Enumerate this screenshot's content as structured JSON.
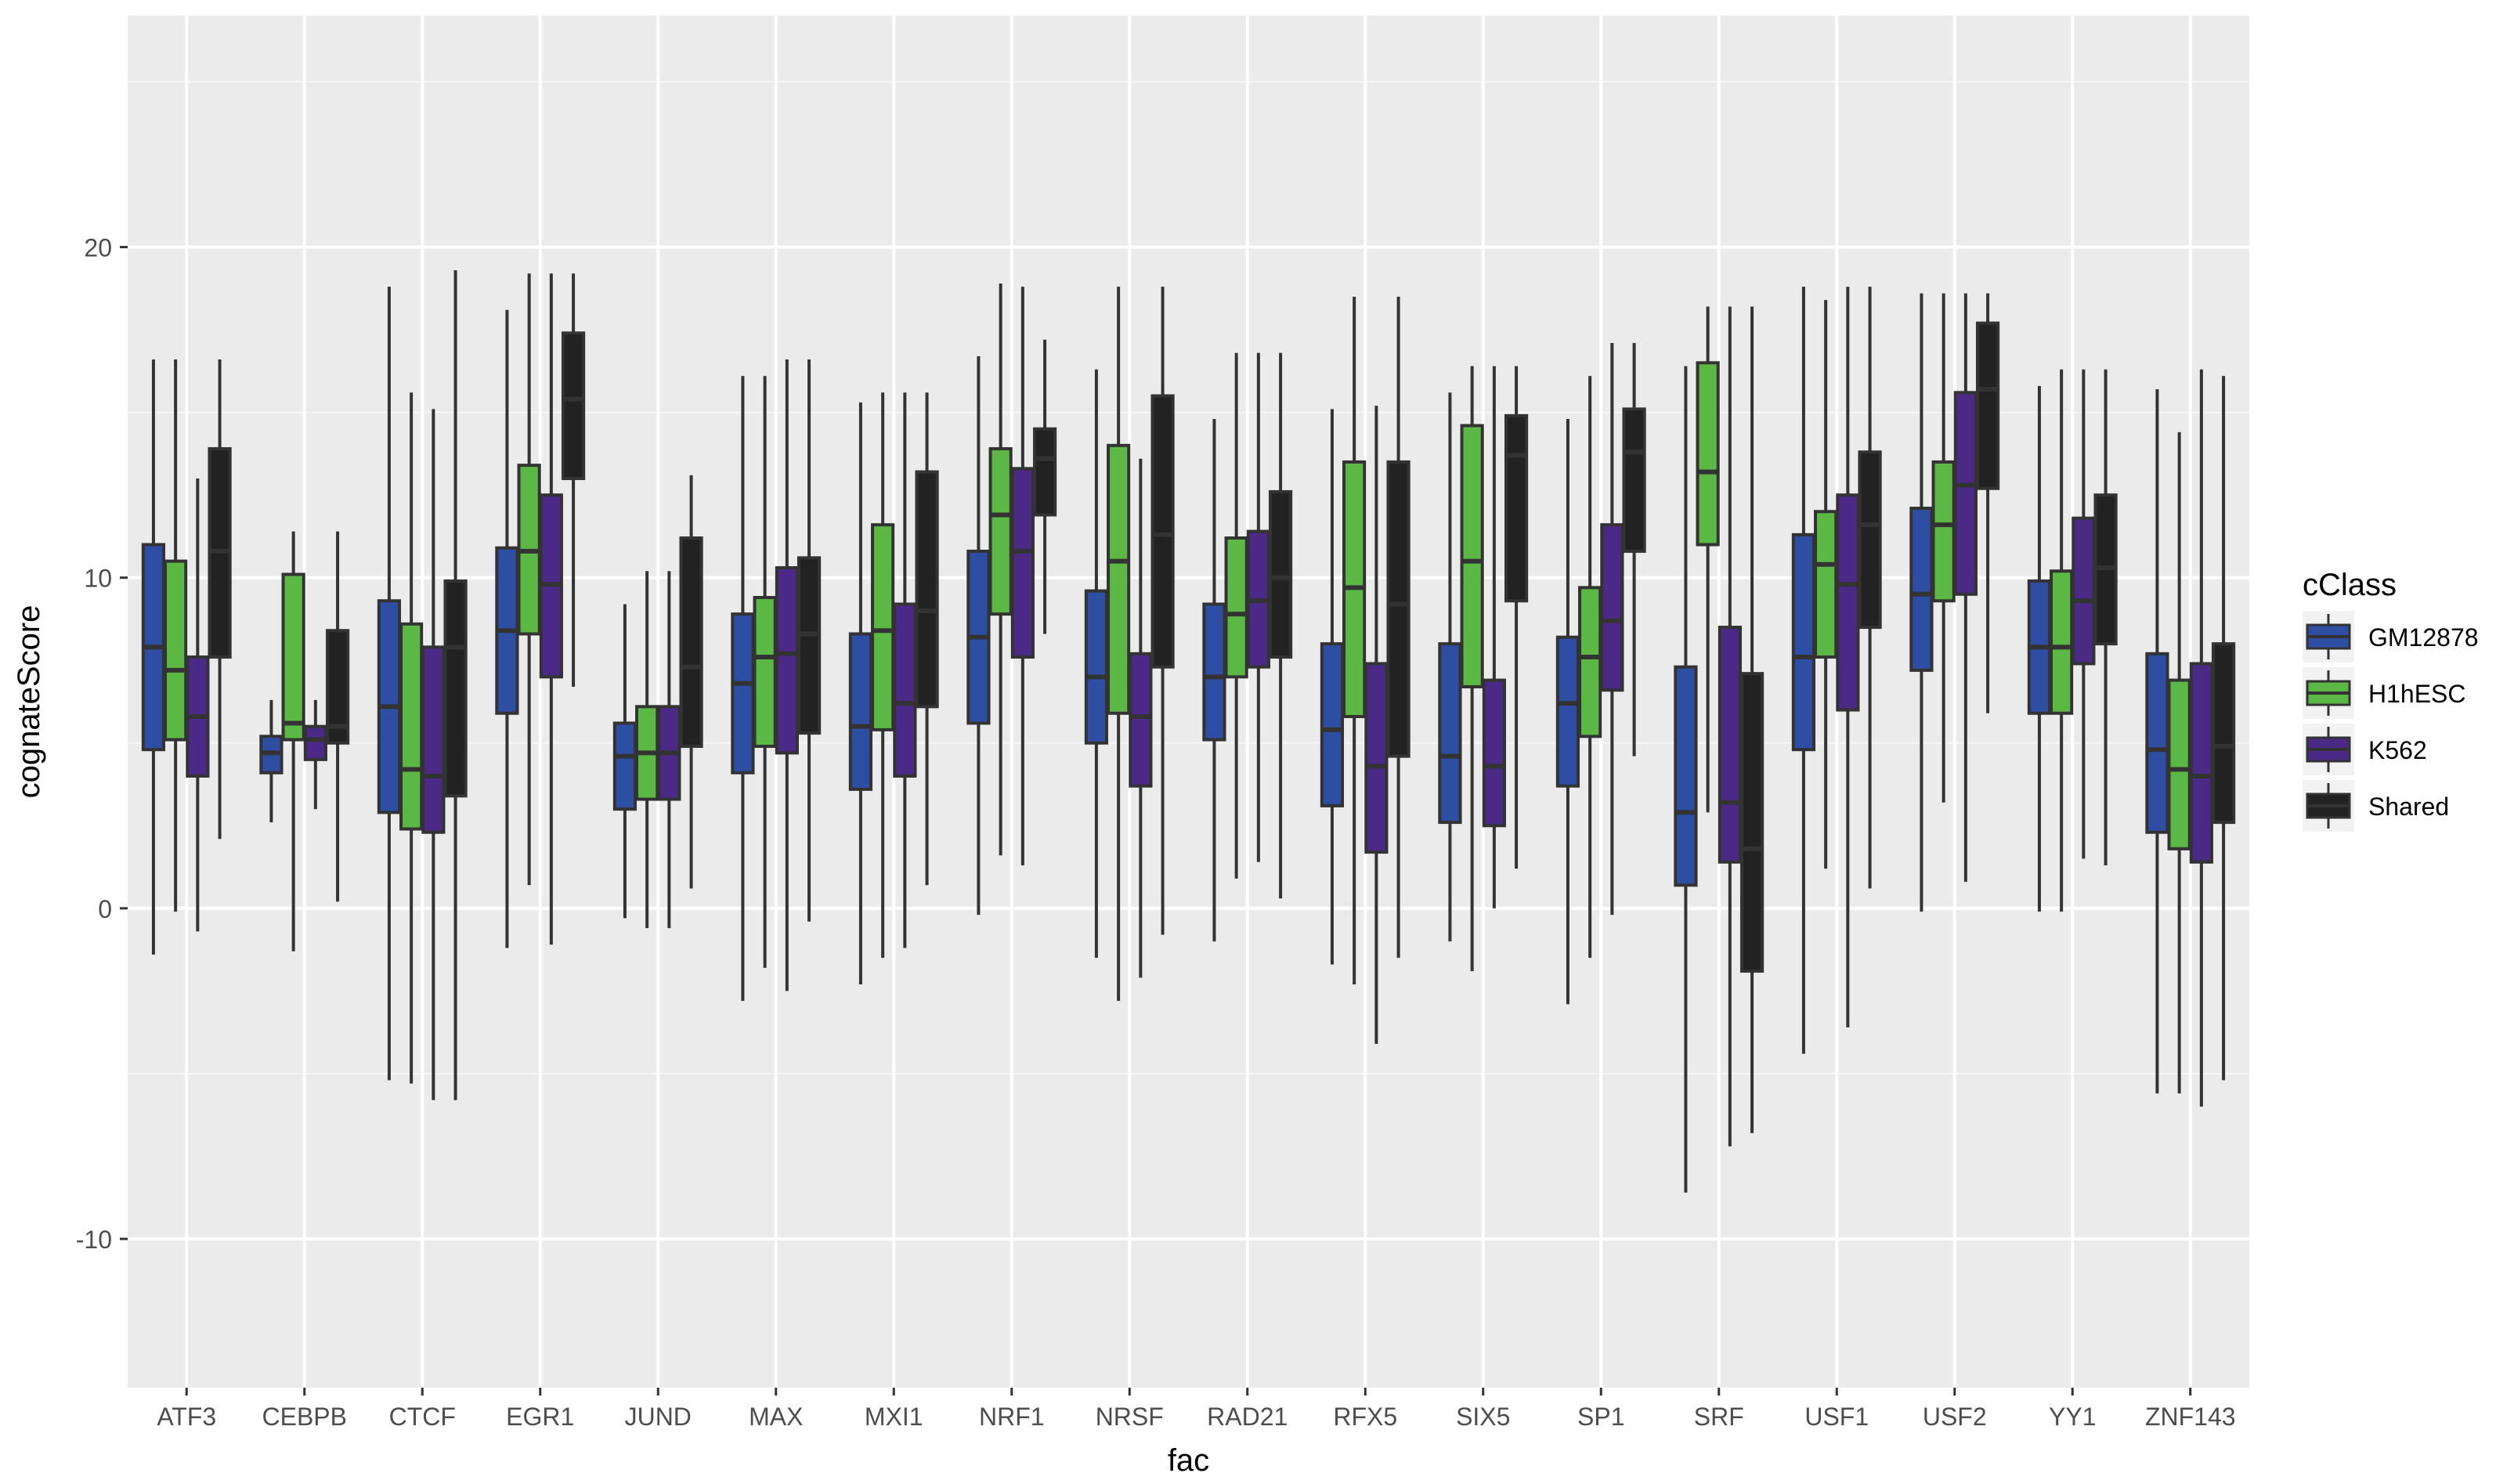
{
  "chart_data": {
    "type": "boxplot",
    "xlabel": "fac",
    "ylabel": "cognateScore",
    "ylim": [
      -14.5,
      27
    ],
    "yticks": [
      -10,
      0,
      10,
      20
    ],
    "grid": true,
    "legend": {
      "title": "cClass",
      "position": "right"
    },
    "categories": [
      "ATF3",
      "CEBPB",
      "CTCF",
      "EGR1",
      "JUND",
      "MAX",
      "MXI1",
      "NRF1",
      "NRSF",
      "RAD21",
      "RFX5",
      "SIX5",
      "SP1",
      "SRF",
      "USF1",
      "USF2",
      "YY1",
      "ZNF143"
    ],
    "series": [
      {
        "name": "GM12878",
        "color": "#2d4ea3",
        "boxes": [
          {
            "min": -1.4,
            "q1": 4.8,
            "median": 7.9,
            "q3": 11.0,
            "max": 16.6
          },
          {
            "min": 2.6,
            "q1": 4.1,
            "median": 4.7,
            "q3": 5.2,
            "max": 6.3
          },
          {
            "min": -5.2,
            "q1": 2.9,
            "median": 6.1,
            "q3": 9.3,
            "max": 18.8
          },
          {
            "min": -1.2,
            "q1": 5.9,
            "median": 8.4,
            "q3": 10.9,
            "max": 18.1
          },
          {
            "min": -0.3,
            "q1": 3.0,
            "median": 4.6,
            "q3": 5.6,
            "max": 9.2
          },
          {
            "min": -2.8,
            "q1": 4.1,
            "median": 6.8,
            "q3": 8.9,
            "max": 16.1
          },
          {
            "min": -2.3,
            "q1": 3.6,
            "median": 5.5,
            "q3": 8.3,
            "max": 15.3
          },
          {
            "min": -0.2,
            "q1": 5.6,
            "median": 8.2,
            "q3": 10.8,
            "max": 16.7
          },
          {
            "min": -1.5,
            "q1": 5.0,
            "median": 7.0,
            "q3": 9.6,
            "max": 16.3
          },
          {
            "min": -1.0,
            "q1": 5.1,
            "median": 7.0,
            "q3": 9.2,
            "max": 14.8
          },
          {
            "min": -1.7,
            "q1": 3.1,
            "median": 5.4,
            "q3": 8.0,
            "max": 15.1
          },
          {
            "min": -1.0,
            "q1": 2.6,
            "median": 4.6,
            "q3": 8.0,
            "max": 15.6
          },
          {
            "min": -2.9,
            "q1": 3.7,
            "median": 6.2,
            "q3": 8.2,
            "max": 14.8
          },
          {
            "min": -8.6,
            "q1": 0.7,
            "median": 2.9,
            "q3": 7.3,
            "max": 16.4
          },
          {
            "min": -4.4,
            "q1": 4.8,
            "median": 7.6,
            "q3": 11.3,
            "max": 18.8
          },
          {
            "min": -0.1,
            "q1": 7.2,
            "median": 9.5,
            "q3": 12.1,
            "max": 18.6
          },
          {
            "min": -0.1,
            "q1": 5.9,
            "median": 7.9,
            "q3": 9.9,
            "max": 15.8
          },
          {
            "min": -5.6,
            "q1": 2.3,
            "median": 4.8,
            "q3": 7.7,
            "max": 15.7
          }
        ]
      },
      {
        "name": "H1hESC",
        "color": "#5cb845",
        "boxes": [
          {
            "min": -0.1,
            "q1": 5.1,
            "median": 7.2,
            "q3": 10.5,
            "max": 16.6
          },
          {
            "min": -1.3,
            "q1": 5.1,
            "median": 5.6,
            "q3": 10.1,
            "max": 11.4
          },
          {
            "min": -5.3,
            "q1": 2.4,
            "median": 4.2,
            "q3": 8.6,
            "max": 15.6
          },
          {
            "min": 0.7,
            "q1": 8.3,
            "median": 10.8,
            "q3": 13.4,
            "max": 19.2
          },
          {
            "min": -0.6,
            "q1": 3.3,
            "median": 4.7,
            "q3": 6.1,
            "max": 10.2
          },
          {
            "min": -1.8,
            "q1": 4.9,
            "median": 7.6,
            "q3": 9.4,
            "max": 16.1
          },
          {
            "min": -1.5,
            "q1": 5.4,
            "median": 8.4,
            "q3": 11.6,
            "max": 15.6
          },
          {
            "min": 1.6,
            "q1": 8.9,
            "median": 11.9,
            "q3": 13.9,
            "max": 18.9
          },
          {
            "min": -2.8,
            "q1": 5.9,
            "median": 10.5,
            "q3": 14.0,
            "max": 18.8
          },
          {
            "min": 0.9,
            "q1": 7.0,
            "median": 8.9,
            "q3": 11.2,
            "max": 16.8
          },
          {
            "min": -2.3,
            "q1": 5.8,
            "median": 9.7,
            "q3": 13.5,
            "max": 18.5
          },
          {
            "min": -1.9,
            "q1": 6.7,
            "median": 10.5,
            "q3": 14.6,
            "max": 16.4
          },
          {
            "min": -1.5,
            "q1": 5.2,
            "median": 7.6,
            "q3": 9.7,
            "max": 16.1
          },
          {
            "min": 2.9,
            "q1": 11.0,
            "median": 13.2,
            "q3": 16.5,
            "max": 18.2
          },
          {
            "min": 1.2,
            "q1": 7.6,
            "median": 10.4,
            "q3": 12.0,
            "max": 18.4
          },
          {
            "min": 3.2,
            "q1": 9.3,
            "median": 11.6,
            "q3": 13.5,
            "max": 18.6
          },
          {
            "min": -0.1,
            "q1": 5.9,
            "median": 7.9,
            "q3": 10.2,
            "max": 16.3
          },
          {
            "min": -5.6,
            "q1": 1.8,
            "median": 4.2,
            "q3": 6.9,
            "max": 14.4
          }
        ]
      },
      {
        "name": "K562",
        "color": "#4a2a86",
        "boxes": [
          {
            "min": -0.7,
            "q1": 4.0,
            "median": 5.8,
            "q3": 7.6,
            "max": 13.0
          },
          {
            "min": 3.0,
            "q1": 4.5,
            "median": 5.1,
            "q3": 5.5,
            "max": 6.3
          },
          {
            "min": -5.8,
            "q1": 2.3,
            "median": 4.0,
            "q3": 7.9,
            "max": 15.1
          },
          {
            "min": -1.1,
            "q1": 7.0,
            "median": 9.8,
            "q3": 12.5,
            "max": 19.2
          },
          {
            "min": -0.6,
            "q1": 3.3,
            "median": 4.7,
            "q3": 6.1,
            "max": 10.2
          },
          {
            "min": -2.5,
            "q1": 4.7,
            "median": 7.7,
            "q3": 10.3,
            "max": 16.6
          },
          {
            "min": -1.2,
            "q1": 4.0,
            "median": 6.2,
            "q3": 9.2,
            "max": 15.6
          },
          {
            "min": 1.3,
            "q1": 7.6,
            "median": 10.8,
            "q3": 13.3,
            "max": 18.8
          },
          {
            "min": -2.1,
            "q1": 3.7,
            "median": 5.8,
            "q3": 7.7,
            "max": 13.6
          },
          {
            "min": 1.4,
            "q1": 7.3,
            "median": 9.3,
            "q3": 11.4,
            "max": 16.8
          },
          {
            "min": -4.1,
            "q1": 1.7,
            "median": 4.3,
            "q3": 7.4,
            "max": 15.2
          },
          {
            "min": 0.0,
            "q1": 2.5,
            "median": 4.3,
            "q3": 6.9,
            "max": 16.4
          },
          {
            "min": -0.2,
            "q1": 6.6,
            "median": 8.7,
            "q3": 11.6,
            "max": 17.1
          },
          {
            "min": -7.2,
            "q1": 1.4,
            "median": 3.2,
            "q3": 8.5,
            "max": 18.2
          },
          {
            "min": -3.6,
            "q1": 6.0,
            "median": 9.8,
            "q3": 12.5,
            "max": 18.8
          },
          {
            "min": 0.8,
            "q1": 9.5,
            "median": 12.8,
            "q3": 15.6,
            "max": 18.6
          },
          {
            "min": 1.5,
            "q1": 7.4,
            "median": 9.3,
            "q3": 11.8,
            "max": 16.3
          },
          {
            "min": -6.0,
            "q1": 1.4,
            "median": 4.0,
            "q3": 7.4,
            "max": 16.3
          }
        ]
      },
      {
        "name": "Shared",
        "color": "#222222",
        "boxes": [
          {
            "min": 2.1,
            "q1": 7.6,
            "median": 10.8,
            "q3": 13.9,
            "max": 16.6
          },
          {
            "min": 0.2,
            "q1": 5.0,
            "median": 5.5,
            "q3": 8.4,
            "max": 11.4
          },
          {
            "min": -5.8,
            "q1": 3.4,
            "median": 7.9,
            "q3": 9.9,
            "max": 19.3
          },
          {
            "min": 6.7,
            "q1": 13.0,
            "median": 15.4,
            "q3": 17.4,
            "max": 19.2
          },
          {
            "min": 0.6,
            "q1": 4.9,
            "median": 7.3,
            "q3": 11.2,
            "max": 13.1
          },
          {
            "min": -0.4,
            "q1": 5.3,
            "median": 8.3,
            "q3": 10.6,
            "max": 16.6
          },
          {
            "min": 0.7,
            "q1": 6.1,
            "median": 9.0,
            "q3": 13.2,
            "max": 15.6
          },
          {
            "min": 8.3,
            "q1": 11.9,
            "median": 13.6,
            "q3": 14.5,
            "max": 17.2
          },
          {
            "min": -0.8,
            "q1": 7.3,
            "median": 11.3,
            "q3": 15.5,
            "max": 18.8
          },
          {
            "min": 0.3,
            "q1": 7.6,
            "median": 10.0,
            "q3": 12.6,
            "max": 16.8
          },
          {
            "min": -1.5,
            "q1": 4.6,
            "median": 9.2,
            "q3": 13.5,
            "max": 18.5
          },
          {
            "min": 1.2,
            "q1": 9.3,
            "median": 13.7,
            "q3": 14.9,
            "max": 16.4
          },
          {
            "min": 4.6,
            "q1": 10.8,
            "median": 13.8,
            "q3": 15.1,
            "max": 17.1
          },
          {
            "min": -6.8,
            "q1": -1.9,
            "median": 1.8,
            "q3": 7.1,
            "max": 18.2
          },
          {
            "min": 0.6,
            "q1": 8.5,
            "median": 11.6,
            "q3": 13.8,
            "max": 18.8
          },
          {
            "min": 5.9,
            "q1": 12.7,
            "median": 15.7,
            "q3": 17.7,
            "max": 18.6
          },
          {
            "min": 1.3,
            "q1": 8.0,
            "median": 10.3,
            "q3": 12.5,
            "max": 16.3
          },
          {
            "min": -5.2,
            "q1": 2.6,
            "median": 4.9,
            "q3": 8.0,
            "max": 16.1
          }
        ]
      }
    ]
  }
}
